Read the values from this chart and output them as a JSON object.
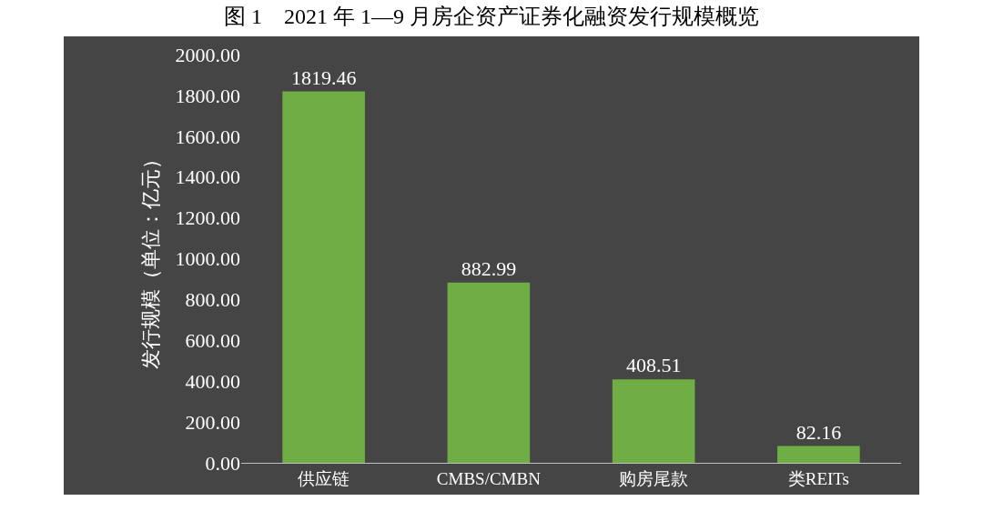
{
  "chart_data": {
    "type": "bar",
    "title": "图 1　2021 年 1—9 月房企资产证券化融资发行规模概览",
    "ylabel": "发行规模（单位：亿元）",
    "categories": [
      "供应链",
      "CMBS/CMBN",
      "购房尾款",
      "类REITs"
    ],
    "values": [
      1819.46,
      882.99,
      408.51,
      82.16
    ],
    "color": "#6fae45",
    "data_labels": true,
    "grid": false,
    "ylim": [
      0,
      2000
    ],
    "yticks": [
      {
        "value": 0,
        "label": "0.00"
      },
      {
        "value": 200,
        "label": "200.00"
      },
      {
        "value": 400,
        "label": "400.00"
      },
      {
        "value": 600,
        "label": "600.00"
      },
      {
        "value": 800,
        "label": "800.00"
      },
      {
        "value": 1000,
        "label": "1000.00"
      },
      {
        "value": 1200,
        "label": "1200.00"
      },
      {
        "value": 1400,
        "label": "1400.00"
      },
      {
        "value": 1600,
        "label": "1600.00"
      },
      {
        "value": 1800,
        "label": "1800.00"
      },
      {
        "value": 2000,
        "label": "2000.00"
      }
    ]
  }
}
